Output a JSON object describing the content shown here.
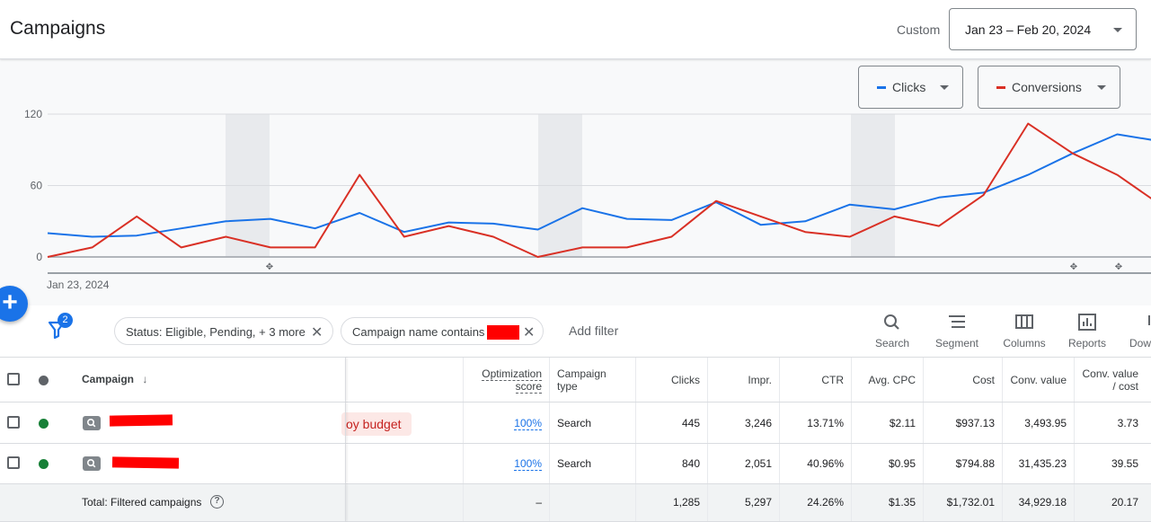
{
  "header": {
    "title": "Campaigns",
    "range_label": "Custom",
    "date_range": "Jan 23 – Feb 20, 2024"
  },
  "chart": {
    "metric_buttons": [
      {
        "label": "Clicks",
        "color": "#1a73e8"
      },
      {
        "label": "Conversions",
        "color": "#d93025"
      }
    ],
    "y_ticks": [
      "120",
      "60",
      "0"
    ],
    "x_start_label": "Jan 23, 2024"
  },
  "chart_data": {
    "type": "line",
    "x_label_start": "Jan 23, 2024",
    "ylim": [
      0,
      120
    ],
    "y_ticks": [
      0,
      60,
      120
    ],
    "grid": true,
    "series": [
      {
        "name": "Clicks",
        "color": "#1a73e8",
        "values": [
          20,
          17,
          18,
          24,
          30,
          32,
          24,
          37,
          21,
          29,
          28,
          23,
          41,
          32,
          31,
          46,
          27,
          30,
          44,
          40,
          50,
          54,
          69,
          87,
          103,
          97
        ]
      },
      {
        "name": "Conversions",
        "color": "#d93025",
        "values": [
          0,
          8,
          34,
          8,
          17,
          8,
          8,
          69,
          17,
          26,
          17,
          0,
          8,
          8,
          17,
          47,
          34,
          21,
          17,
          34,
          26,
          52,
          112,
          87,
          69,
          43
        ]
      }
    ]
  },
  "filters": {
    "badge_count": "2",
    "chips": [
      {
        "label": "Status: Eligible, Pending, + 3 more"
      },
      {
        "label": "Campaign name contains"
      }
    ],
    "add_filter": "Add filter"
  },
  "toolbar": {
    "items": [
      {
        "label": "Search",
        "icon": "search-icon"
      },
      {
        "label": "Segment",
        "icon": "segment-icon"
      },
      {
        "label": "Columns",
        "icon": "columns-icon"
      },
      {
        "label": "Reports",
        "icon": "reports-icon"
      },
      {
        "label": "Down",
        "icon": "download-icon"
      }
    ]
  },
  "table": {
    "headers": {
      "campaign": "Campaign",
      "optimization_score_1": "Optimization",
      "optimization_score_2": "score",
      "campaign_type_1": "Campaign",
      "campaign_type_2": "type",
      "clicks": "Clicks",
      "impr": "Impr.",
      "ctr": "CTR",
      "avg_cpc": "Avg. CPC",
      "cost": "Cost",
      "conv_value": "Conv. value",
      "conv_value_cost_1": "Conv. value",
      "conv_value_cost_2": "/ cost"
    },
    "rows": [
      {
        "status_text": "oy budget",
        "opt_score": "100%",
        "type": "Search",
        "clicks": "445",
        "impr": "3,246",
        "ctr": "13.71%",
        "avg_cpc": "$2.11",
        "cost": "$937.13",
        "conv_value": "3,493.95",
        "conv_value_cost": "3.73",
        "status_color": "#188038"
      },
      {
        "status_text": "",
        "opt_score": "100%",
        "type": "Search",
        "clicks": "840",
        "impr": "2,051",
        "ctr": "40.96%",
        "avg_cpc": "$0.95",
        "cost": "$794.88",
        "conv_value": "31,435.23",
        "conv_value_cost": "39.55",
        "status_color": "#188038"
      }
    ],
    "total": {
      "label": "Total: Filtered campaigns",
      "opt_score": "–",
      "clicks": "1,285",
      "impr": "5,297",
      "ctr": "24.26%",
      "avg_cpc": "$1.35",
      "cost": "$1,732.01",
      "conv_value": "34,929.18",
      "conv_value_cost": "20.17"
    }
  }
}
